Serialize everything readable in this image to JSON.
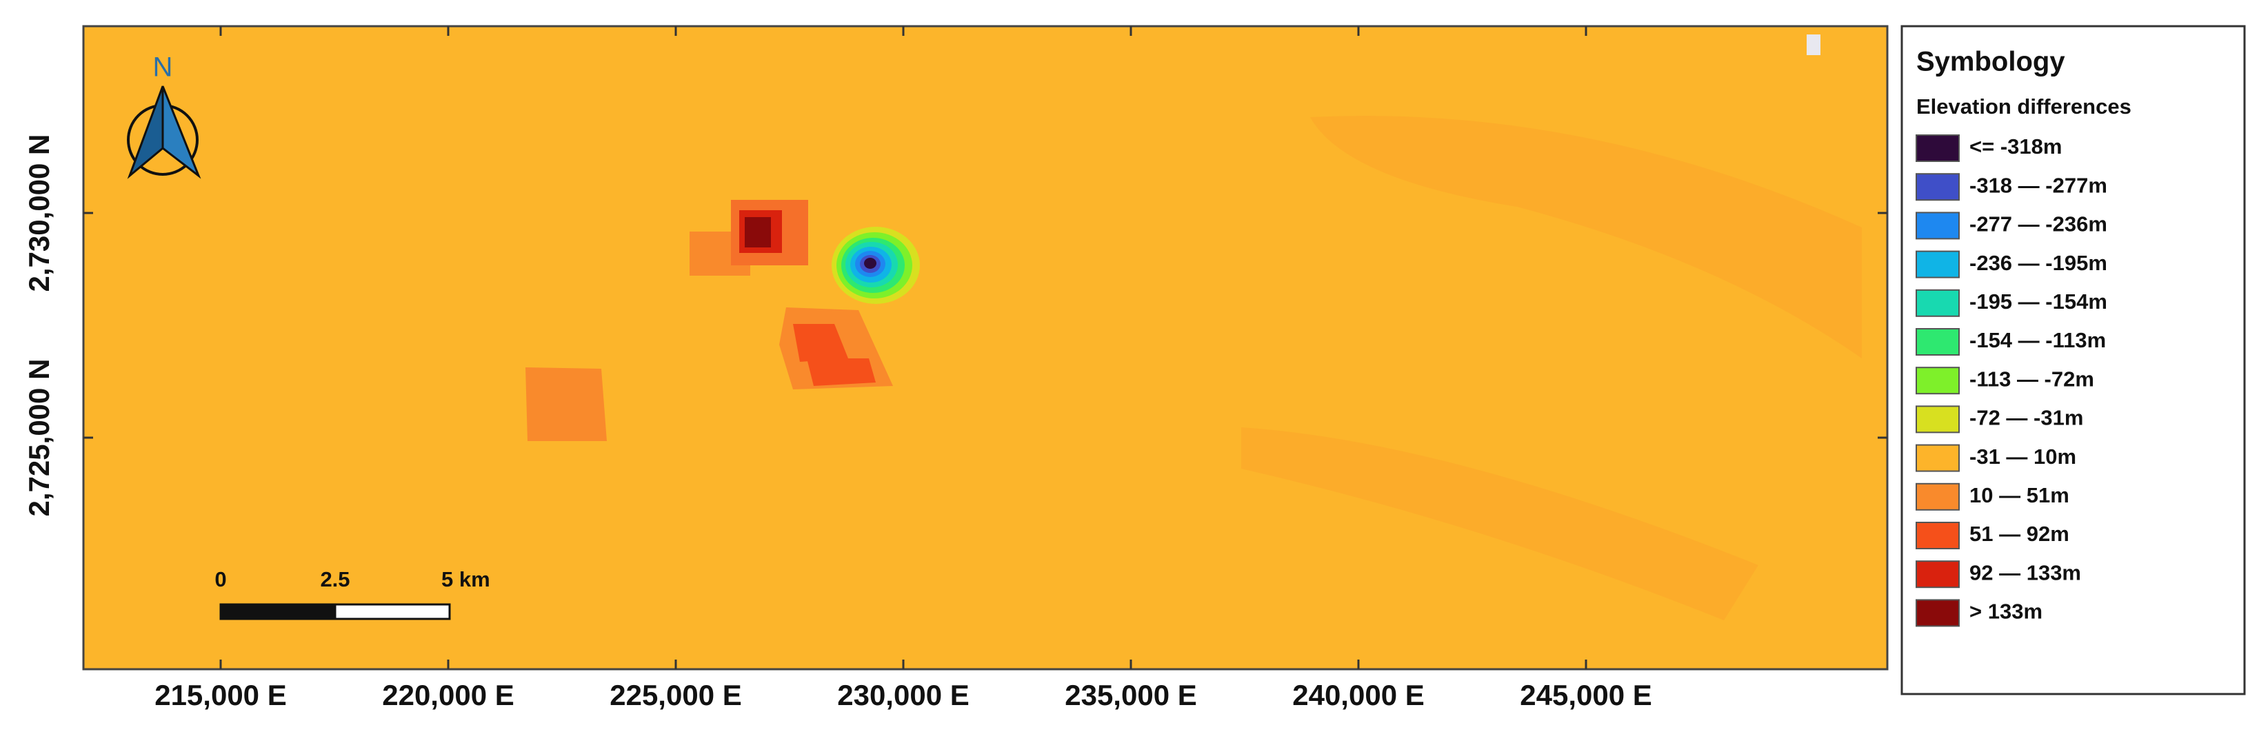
{
  "map": {
    "xlim": [
      211985,
      251621
    ],
    "ylim": [
      2719847,
      2734157
    ],
    "xticks": [
      {
        "value": 215000,
        "label": "215,000 E"
      },
      {
        "value": 220000,
        "label": "220,000 E"
      },
      {
        "value": 225000,
        "label": "225,000 E"
      },
      {
        "value": 230000,
        "label": "230,000 E"
      },
      {
        "value": 235000,
        "label": "235,000 E"
      },
      {
        "value": 240000,
        "label": "240,000 E"
      },
      {
        "value": 245000,
        "label": "245,000 E"
      }
    ],
    "yticks": [
      {
        "value": 2725000,
        "label": "2,725,000 N"
      },
      {
        "value": 2730000,
        "label": "2,730,000 N"
      }
    ],
    "north_label": "N",
    "scale_bar": [
      "0",
      "2.5",
      "5 km"
    ]
  },
  "legend": {
    "title": "Symbology",
    "subtitle": "Elevation differences",
    "classes": [
      {
        "label": "<= -318m",
        "color": "#2e0a3a"
      },
      {
        "label": "-318 — -277m",
        "color": "#3f4fc8"
      },
      {
        "label": "-277 — -236m",
        "color": "#1e88f0"
      },
      {
        "label": "-236 — -195m",
        "color": "#10b4e6"
      },
      {
        "label": "-195 — -154m",
        "color": "#18d9b0"
      },
      {
        "label": "-154 — -113m",
        "color": "#2ee870"
      },
      {
        "label": "-113 — -72m",
        "color": "#7ef02a"
      },
      {
        "label": "-72 — -31m",
        "color": "#d8e020"
      },
      {
        "label": "-31 — 10m",
        "color": "#fdb42a"
      },
      {
        "label": "10 — 51m",
        "color": "#f98a2c"
      },
      {
        "label": "51 — 92m",
        "color": "#f5501a"
      },
      {
        "label": "92 — 133m",
        "color": "#d9220e"
      },
      {
        "label": "> 133m",
        "color": "#8a0a0a"
      }
    ]
  }
}
